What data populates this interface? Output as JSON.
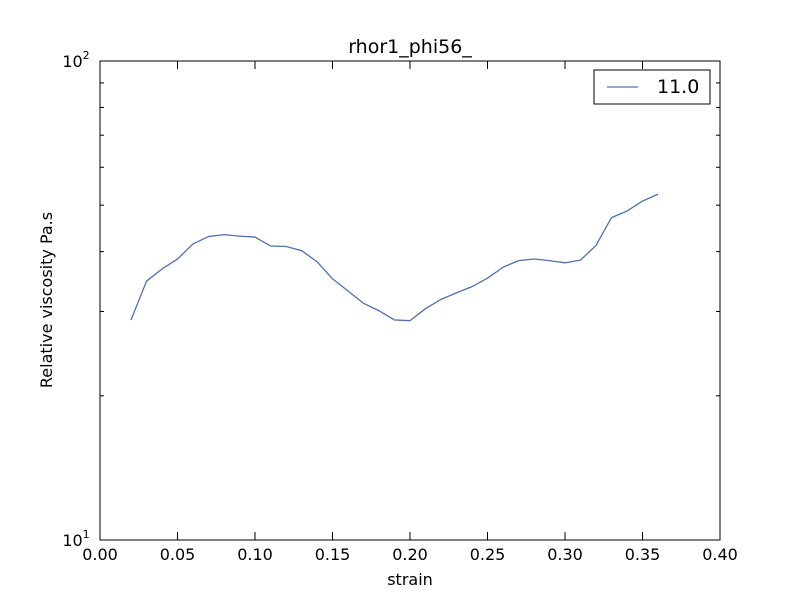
{
  "chart_data": {
    "type": "line",
    "title": "rhor1_phi56_",
    "xlabel": "strain",
    "ylabel": "Relative viscosity Pa.s",
    "xlim": [
      0.0,
      0.4
    ],
    "ylim": [
      10,
      100
    ],
    "yscale": "log",
    "grid": false,
    "legend_position": "top-right",
    "xticks": [
      "0.00",
      "0.05",
      "0.10",
      "0.15",
      "0.20",
      "0.25",
      "0.30",
      "0.35",
      "0.40"
    ],
    "yticks": [
      {
        "base": "10",
        "exp": "1"
      },
      {
        "base": "10",
        "exp": "2"
      }
    ],
    "series": [
      {
        "name": "11.0",
        "color": "#4c72b0",
        "x": [
          0.02,
          0.03,
          0.04,
          0.05,
          0.06,
          0.07,
          0.08,
          0.09,
          0.1,
          0.11,
          0.12,
          0.13,
          0.14,
          0.15,
          0.16,
          0.17,
          0.18,
          0.19,
          0.2,
          0.21,
          0.22,
          0.23,
          0.24,
          0.25,
          0.26,
          0.27,
          0.28,
          0.29,
          0.3,
          0.31,
          0.32,
          0.33,
          0.34,
          0.35,
          0.36
        ],
        "y": [
          28.8,
          34.7,
          36.8,
          38.6,
          41.5,
          43.0,
          43.4,
          43.1,
          42.9,
          41.1,
          41.0,
          40.2,
          38.1,
          35.1,
          33.1,
          31.2,
          30.1,
          28.8,
          28.7,
          30.4,
          31.8,
          32.8,
          33.8,
          35.2,
          37.1,
          38.3,
          38.6,
          38.3,
          37.9,
          38.4,
          41.2,
          47.1,
          48.6,
          51.0,
          52.7
        ]
      }
    ]
  }
}
